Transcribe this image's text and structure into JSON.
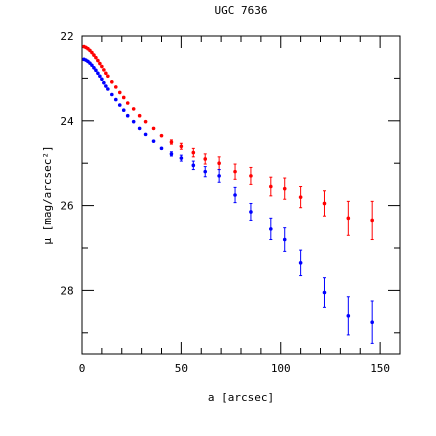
{
  "chart_data": {
    "type": "scatter",
    "title": "UGC 7636",
    "xlabel": "a [arcsec]",
    "ylabel": "μ [mag/arcsec²]",
    "xlim": [
      0,
      160
    ],
    "ylim": [
      29.5,
      22
    ],
    "x_ticks": [
      0,
      50,
      100,
      150
    ],
    "y_ticks": [
      22,
      24,
      26,
      28
    ],
    "grid": false,
    "series": [
      {
        "color": "#ff0000",
        "points": [
          {
            "x": 1,
            "y": 22.25,
            "err": 0
          },
          {
            "x": 2,
            "y": 22.27,
            "err": 0
          },
          {
            "x": 3,
            "y": 22.3,
            "err": 0
          },
          {
            "x": 4,
            "y": 22.34,
            "err": 0
          },
          {
            "x": 5,
            "y": 22.39,
            "err": 0
          },
          {
            "x": 6,
            "y": 22.45,
            "err": 0
          },
          {
            "x": 7,
            "y": 22.51,
            "err": 0
          },
          {
            "x": 8,
            "y": 22.58,
            "err": 0
          },
          {
            "x": 9,
            "y": 22.65,
            "err": 0
          },
          {
            "x": 10,
            "y": 22.72,
            "err": 0
          },
          {
            "x": 11,
            "y": 22.8,
            "err": 0
          },
          {
            "x": 12,
            "y": 22.88,
            "err": 0
          },
          {
            "x": 13,
            "y": 22.95,
            "err": 0
          },
          {
            "x": 15,
            "y": 23.08,
            "err": 0
          },
          {
            "x": 17,
            "y": 23.2,
            "err": 0
          },
          {
            "x": 19,
            "y": 23.33,
            "err": 0
          },
          {
            "x": 21,
            "y": 23.45,
            "err": 0
          },
          {
            "x": 23,
            "y": 23.58,
            "err": 0
          },
          {
            "x": 26,
            "y": 23.72,
            "err": 0
          },
          {
            "x": 29,
            "y": 23.88,
            "err": 0
          },
          {
            "x": 32,
            "y": 24.02,
            "err": 0
          },
          {
            "x": 36,
            "y": 24.18,
            "err": 0
          },
          {
            "x": 40,
            "y": 24.35,
            "err": 0
          },
          {
            "x": 45,
            "y": 24.5,
            "err": 0.05
          },
          {
            "x": 50,
            "y": 24.6,
            "err": 0.07
          },
          {
            "x": 56,
            "y": 24.75,
            "err": 0.1
          },
          {
            "x": 62,
            "y": 24.9,
            "err": 0.12
          },
          {
            "x": 69,
            "y": 25.0,
            "err": 0.15
          },
          {
            "x": 77,
            "y": 25.2,
            "err": 0.18
          },
          {
            "x": 85,
            "y": 25.3,
            "err": 0.2
          },
          {
            "x": 95,
            "y": 25.55,
            "err": 0.22
          },
          {
            "x": 102,
            "y": 25.6,
            "err": 0.25
          },
          {
            "x": 110,
            "y": 25.8,
            "err": 0.25
          },
          {
            "x": 122,
            "y": 25.95,
            "err": 0.3
          },
          {
            "x": 134,
            "y": 26.3,
            "err": 0.4
          },
          {
            "x": 146,
            "y": 26.35,
            "err": 0.45
          }
        ]
      },
      {
        "color": "#0000ff",
        "points": [
          {
            "x": 1,
            "y": 22.55,
            "err": 0
          },
          {
            "x": 2,
            "y": 22.57,
            "err": 0
          },
          {
            "x": 3,
            "y": 22.6,
            "err": 0
          },
          {
            "x": 4,
            "y": 22.64,
            "err": 0
          },
          {
            "x": 5,
            "y": 22.69,
            "err": 0
          },
          {
            "x": 6,
            "y": 22.75,
            "err": 0
          },
          {
            "x": 7,
            "y": 22.81,
            "err": 0
          },
          {
            "x": 8,
            "y": 22.88,
            "err": 0
          },
          {
            "x": 9,
            "y": 22.95,
            "err": 0
          },
          {
            "x": 10,
            "y": 23.02,
            "err": 0
          },
          {
            "x": 11,
            "y": 23.1,
            "err": 0
          },
          {
            "x": 12,
            "y": 23.18,
            "err": 0
          },
          {
            "x": 13,
            "y": 23.25,
            "err": 0
          },
          {
            "x": 15,
            "y": 23.38,
            "err": 0
          },
          {
            "x": 17,
            "y": 23.5,
            "err": 0
          },
          {
            "x": 19,
            "y": 23.63,
            "err": 0
          },
          {
            "x": 21,
            "y": 23.75,
            "err": 0
          },
          {
            "x": 23,
            "y": 23.88,
            "err": 0
          },
          {
            "x": 26,
            "y": 24.02,
            "err": 0
          },
          {
            "x": 29,
            "y": 24.18,
            "err": 0
          },
          {
            "x": 32,
            "y": 24.32,
            "err": 0
          },
          {
            "x": 36,
            "y": 24.48,
            "err": 0
          },
          {
            "x": 40,
            "y": 24.65,
            "err": 0
          },
          {
            "x": 45,
            "y": 24.78,
            "err": 0.05
          },
          {
            "x": 50,
            "y": 24.88,
            "err": 0.07
          },
          {
            "x": 56,
            "y": 25.05,
            "err": 0.1
          },
          {
            "x": 62,
            "y": 25.2,
            "err": 0.12
          },
          {
            "x": 69,
            "y": 25.3,
            "err": 0.15
          },
          {
            "x": 77,
            "y": 25.75,
            "err": 0.18
          },
          {
            "x": 85,
            "y": 26.15,
            "err": 0.2
          },
          {
            "x": 95,
            "y": 26.55,
            "err": 0.25
          },
          {
            "x": 102,
            "y": 26.8,
            "err": 0.28
          },
          {
            "x": 110,
            "y": 27.35,
            "err": 0.3
          },
          {
            "x": 122,
            "y": 28.05,
            "err": 0.35
          },
          {
            "x": 134,
            "y": 28.6,
            "err": 0.45
          },
          {
            "x": 146,
            "y": 28.75,
            "err": 0.5
          }
        ]
      }
    ]
  }
}
